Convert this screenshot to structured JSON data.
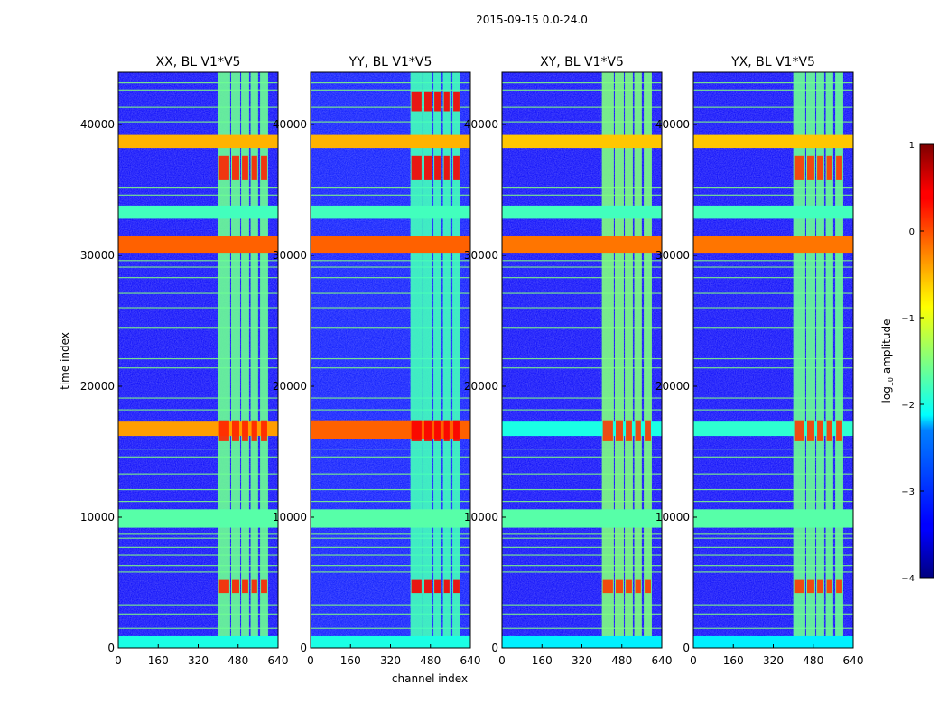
{
  "chart_data": {
    "type": "heatmap",
    "suptitle": "2015-09-15 0.0-24.0",
    "xlabel": "channel index",
    "ylabel": "time index",
    "xlim": [
      0,
      640
    ],
    "ylim": [
      0,
      44000
    ],
    "xticks": [
      0,
      160,
      320,
      480,
      640
    ],
    "yticks": [
      0,
      10000,
      20000,
      30000,
      40000
    ],
    "colorscale": "jet",
    "colorbar": {
      "label_prefix": "log",
      "label_sub": "10",
      "label_suffix": " amplitude",
      "range": [
        -4,
        1
      ],
      "ticks": [
        1,
        0,
        -1,
        -2,
        -3,
        -4
      ],
      "tick_labels": [
        "1",
        "0",
        "−1",
        "−2",
        "−3",
        "−4"
      ]
    },
    "panels": [
      {
        "title": "XX, BL V1*V5",
        "background": -3.4,
        "band_level": -1.6,
        "hot_level": 0.2,
        "hbands": [
          {
            "t0": 0,
            "t1": 900,
            "v": -2.0
          },
          {
            "t0": 9200,
            "t1": 10600,
            "v": -1.7
          },
          {
            "t0": 16200,
            "t1": 17300,
            "v": -0.4
          },
          {
            "t0": 30200,
            "t1": 31500,
            "v": -0.1
          },
          {
            "t0": 32800,
            "t1": 33800,
            "v": -1.8
          },
          {
            "t0": 38200,
            "t1": 39200,
            "v": -0.5
          }
        ],
        "hot_rows": [
          [
            15800,
            17400
          ],
          [
            35800,
            37600
          ],
          [
            4200,
            5200
          ]
        ]
      },
      {
        "title": "YY, BL V1*V5",
        "background": -3.3,
        "band_level": -1.8,
        "hot_level": 0.4,
        "hbands": [
          {
            "t0": 0,
            "t1": 900,
            "v": -2.0
          },
          {
            "t0": 9200,
            "t1": 10600,
            "v": -1.7
          },
          {
            "t0": 16000,
            "t1": 17400,
            "v": -0.1
          },
          {
            "t0": 30200,
            "t1": 31500,
            "v": -0.1
          },
          {
            "t0": 32800,
            "t1": 33800,
            "v": -1.8
          },
          {
            "t0": 38200,
            "t1": 39200,
            "v": -0.5
          }
        ],
        "hot_rows": [
          [
            15800,
            17400
          ],
          [
            35800,
            37600
          ],
          [
            4200,
            5200
          ],
          [
            41000,
            42500
          ]
        ]
      },
      {
        "title": "XY, BL V1*V5",
        "background": -3.4,
        "band_level": -1.5,
        "hot_level": 0.1,
        "hbands": [
          {
            "t0": 0,
            "t1": 900,
            "v": -2.2
          },
          {
            "t0": 9200,
            "t1": 10600,
            "v": -1.7
          },
          {
            "t0": 16200,
            "t1": 17300,
            "v": -2.0
          },
          {
            "t0": 30200,
            "t1": 31500,
            "v": -0.2
          },
          {
            "t0": 32800,
            "t1": 33800,
            "v": -1.8
          },
          {
            "t0": 38200,
            "t1": 39200,
            "v": -0.6
          }
        ],
        "hot_rows": [
          [
            15800,
            17400
          ],
          [
            4200,
            5200
          ]
        ]
      },
      {
        "title": "YX, BL V1*V5",
        "background": -3.4,
        "band_level": -1.6,
        "hot_level": 0.1,
        "hbands": [
          {
            "t0": 0,
            "t1": 900,
            "v": -2.2
          },
          {
            "t0": 9200,
            "t1": 10600,
            "v": -1.7
          },
          {
            "t0": 16200,
            "t1": 17300,
            "v": -1.9
          },
          {
            "t0": 30200,
            "t1": 31500,
            "v": -0.2
          },
          {
            "t0": 32800,
            "t1": 33800,
            "v": -1.8
          },
          {
            "t0": 38200,
            "t1": 39200,
            "v": -0.6
          }
        ],
        "hot_rows": [
          [
            15800,
            17400
          ],
          [
            35800,
            37600
          ],
          [
            4200,
            5200
          ]
        ]
      }
    ],
    "active_channel_blocks": [
      [
        400,
        448
      ],
      [
        452,
        488
      ],
      [
        492,
        524
      ],
      [
        530,
        560
      ],
      [
        568,
        600
      ]
    ],
    "thin_lines": [
      700,
      1500,
      2600,
      3300,
      5800,
      6300,
      7100,
      7700,
      8400,
      8700,
      11200,
      12100,
      13300,
      14600,
      15200,
      18200,
      19100,
      21400,
      22100,
      24500,
      26000,
      27100,
      28300,
      29100,
      29600,
      34600,
      35200,
      40200,
      41300,
      42600,
      43200
    ]
  }
}
